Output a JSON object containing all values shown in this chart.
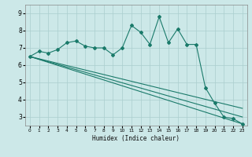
{
  "xlabel": "Humidex (Indice chaleur)",
  "ylabel": "",
  "background_color": "#cce8e8",
  "grid_color": "#aacece",
  "line_color": "#1a7a6a",
  "x_values": [
    0,
    1,
    2,
    3,
    4,
    5,
    6,
    7,
    8,
    9,
    10,
    11,
    12,
    13,
    14,
    15,
    16,
    17,
    18,
    19,
    20,
    21,
    22,
    23
  ],
  "series1": [
    6.5,
    6.8,
    6.7,
    6.9,
    7.3,
    7.4,
    7.1,
    7.0,
    7.0,
    6.6,
    7.0,
    8.3,
    7.9,
    7.2,
    8.8,
    7.3,
    8.1,
    7.2,
    7.2,
    4.7,
    3.8,
    3.0,
    2.9,
    2.6
  ],
  "line2": [
    [
      0,
      23
    ],
    [
      6.5,
      3.5
    ]
  ],
  "line3": [
    [
      0,
      23
    ],
    [
      6.5,
      3.0
    ]
  ],
  "line4": [
    [
      0,
      23
    ],
    [
      6.5,
      2.6
    ]
  ],
  "ylim": [
    2.5,
    9.5
  ],
  "xlim": [
    -0.5,
    23.5
  ],
  "yticks": [
    3,
    4,
    5,
    6,
    7,
    8,
    9
  ],
  "xticks": [
    0,
    1,
    2,
    3,
    4,
    5,
    6,
    7,
    8,
    9,
    10,
    11,
    12,
    13,
    14,
    15,
    16,
    17,
    18,
    19,
    20,
    21,
    22,
    23
  ]
}
